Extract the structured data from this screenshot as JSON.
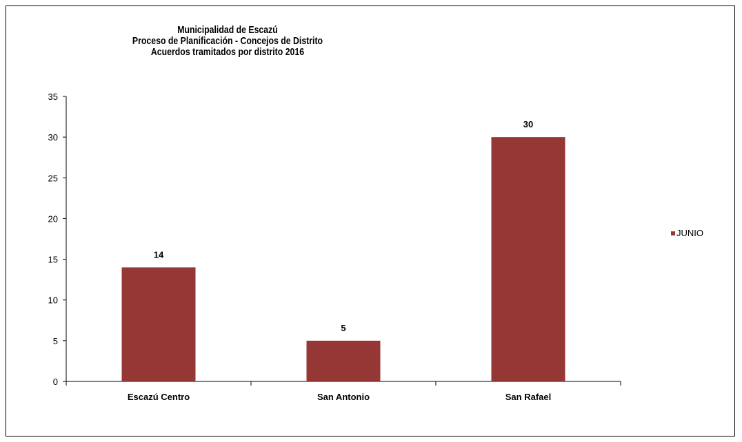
{
  "chart_data": {
    "type": "bar",
    "title": [
      "Municipalidad de Escazú",
      "Proceso de Planificación - Concejos de Distrito",
      "Acuerdos tramitados por distrito  2016"
    ],
    "categories": [
      "Escazú Centro",
      "San Antonio",
      "San Rafael"
    ],
    "series": [
      {
        "name": "JUNIO",
        "values": [
          14,
          5,
          30
        ],
        "color": "#953735"
      }
    ],
    "ylim": [
      0,
      35
    ],
    "yticks": [
      0,
      5,
      10,
      15,
      20,
      25,
      30,
      35
    ],
    "grid": false,
    "legend_position": "right",
    "data_labels": true
  }
}
